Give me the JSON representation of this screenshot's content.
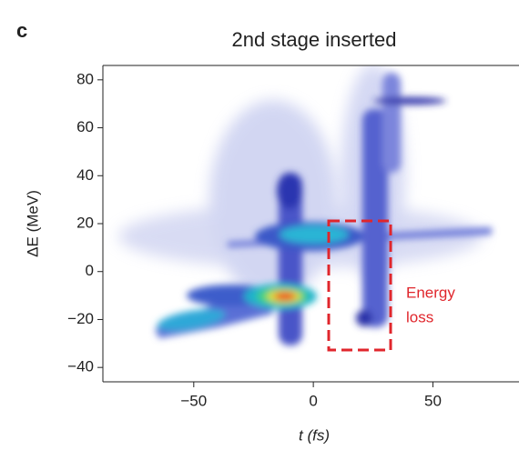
{
  "chart_data": {
    "type": "density",
    "panel_label": "c",
    "title": "2nd stage inserted",
    "x_label": "t (fs)",
    "y_label": "ΔE (MeV)",
    "annotation": [
      "Energy",
      "loss"
    ],
    "xlim": [
      -88,
      86
    ],
    "ylim": [
      -46,
      86
    ],
    "xticks": [
      {
        "value": -50,
        "label": "−50"
      },
      0,
      50
    ],
    "yticks": [
      80,
      60,
      40,
      20,
      0,
      {
        "value": -20,
        "label": "−20"
      },
      {
        "value": -40,
        "label": "−40"
      }
    ],
    "annotation_color": "#e0262c"
  }
}
